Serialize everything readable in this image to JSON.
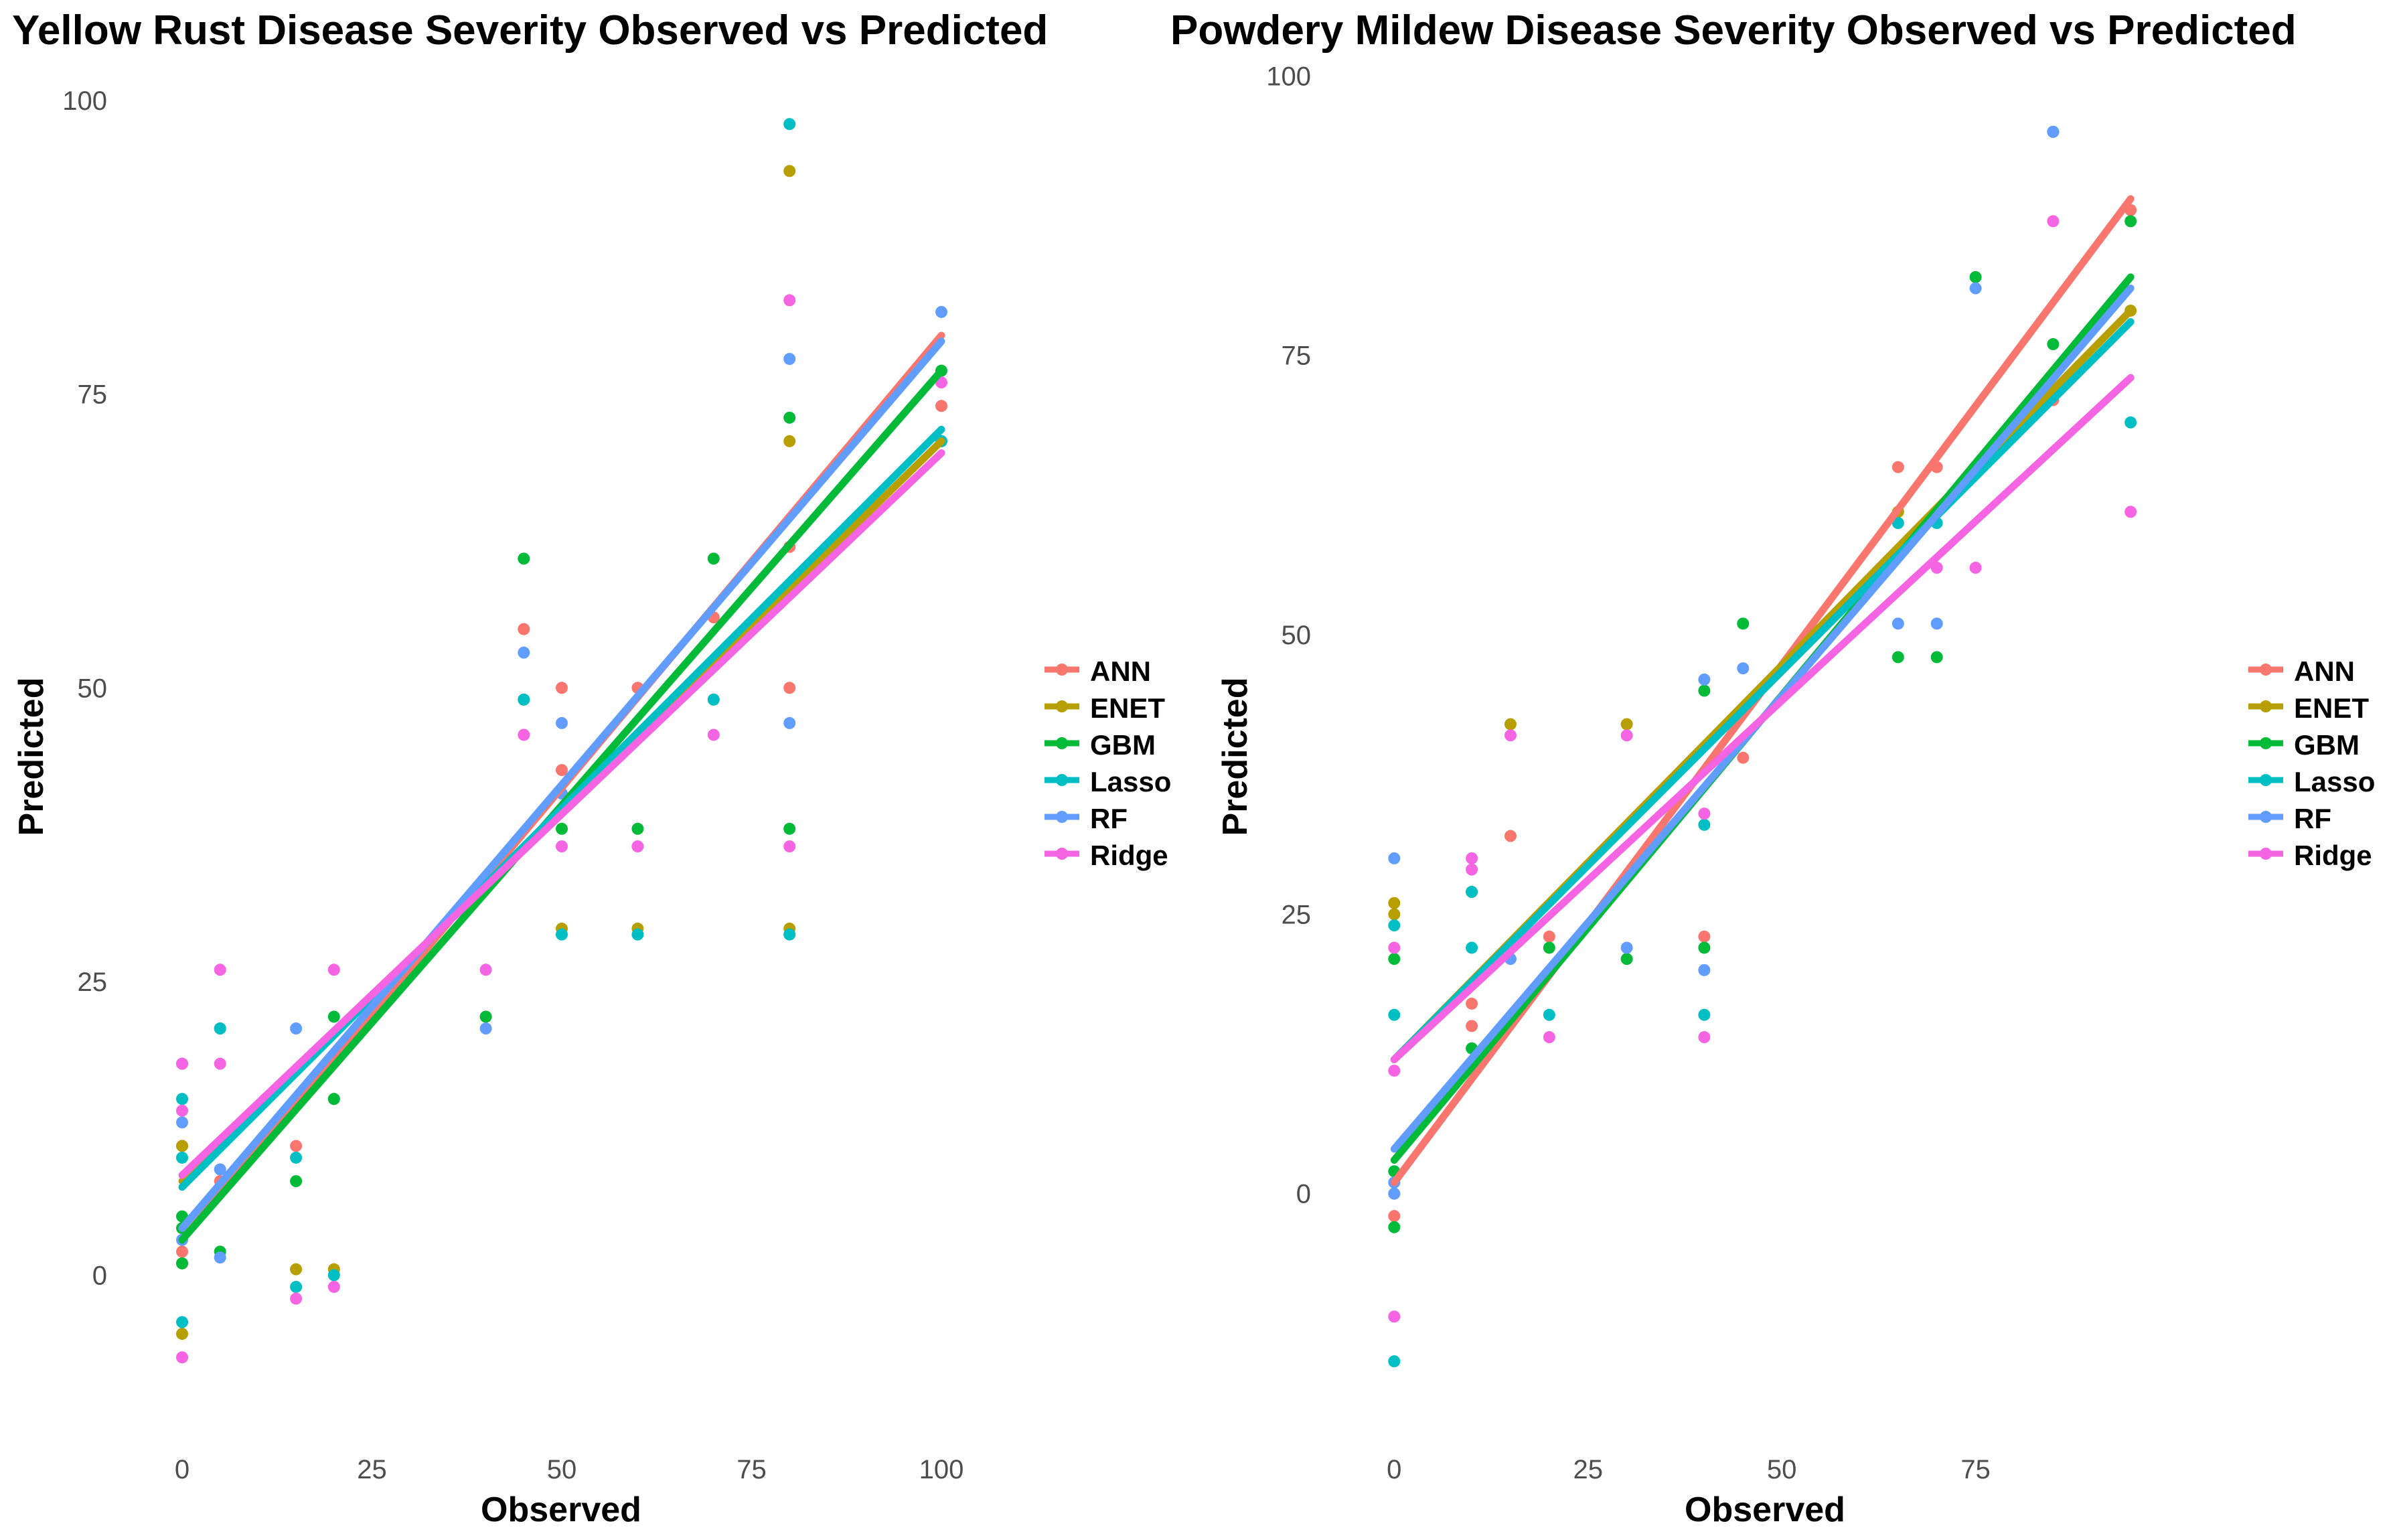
{
  "series_colors": {
    "ANN": "#F8766D",
    "ENET": "#B79F00",
    "GBM": "#00BA38",
    "Lasso": "#00BFC4",
    "RF": "#619CFF",
    "Ridge": "#F564E3"
  },
  "chart_data": [
    {
      "type": "scatter",
      "title": "Yellow Rust Disease Severity Observed vs Predicted",
      "xlabel": "Observed",
      "ylabel": "Predicted",
      "xlim": [
        -3,
        103
      ],
      "ylim": [
        -14,
        104
      ],
      "xticks": [
        0,
        25,
        50,
        75,
        100
      ],
      "yticks": [
        0,
        25,
        50,
        75,
        100
      ],
      "legend": [
        "ANN",
        "ENET",
        "GBM",
        "Lasso",
        "RF",
        "Ridge"
      ],
      "fit_lines": [
        {
          "name": "ANN",
          "x": [
            0,
            100
          ],
          "y": [
            3,
            80
          ]
        },
        {
          "name": "ENET",
          "x": [
            0,
            100
          ],
          "y": [
            8,
            71
          ]
        },
        {
          "name": "GBM",
          "x": [
            0,
            100
          ],
          "y": [
            3,
            77
          ]
        },
        {
          "name": "Lasso",
          "x": [
            0,
            100
          ],
          "y": [
            7.5,
            72
          ]
        },
        {
          "name": "RF",
          "x": [
            0,
            100
          ],
          "y": [
            4,
            79.5
          ]
        },
        {
          "name": "Ridge",
          "x": [
            0,
            100
          ],
          "y": [
            8.5,
            70
          ]
        }
      ],
      "points": [
        {
          "name": "ANN",
          "x": [
            0,
            0,
            5,
            15,
            20,
            40,
            45,
            50,
            50,
            60,
            70,
            80,
            80,
            100
          ],
          "y": [
            11,
            2,
            8,
            11,
            15,
            22,
            55,
            50,
            43,
            50,
            56,
            50,
            62,
            74
          ]
        },
        {
          "name": "ENET",
          "x": [
            0,
            0,
            0,
            5,
            15,
            20,
            45,
            50,
            60,
            70,
            80,
            80,
            80,
            100
          ],
          "y": [
            11,
            -5,
            1,
            21,
            0.5,
            0.5,
            49,
            29.5,
            29.5,
            49,
            94,
            71,
            29.5,
            71
          ]
        },
        {
          "name": "GBM",
          "x": [
            0,
            0,
            0,
            5,
            15,
            20,
            20,
            40,
            45,
            50,
            60,
            70,
            80,
            80,
            100
          ],
          "y": [
            4,
            1,
            5,
            2,
            8,
            15,
            22,
            22,
            61,
            38,
            38,
            61,
            73,
            38,
            77
          ]
        },
        {
          "name": "Lasso",
          "x": [
            0,
            0,
            0,
            5,
            15,
            15,
            20,
            45,
            50,
            60,
            70,
            80,
            80,
            100
          ],
          "y": [
            15,
            10,
            -4,
            21,
            10,
            -1,
            0,
            49,
            29,
            29,
            49,
            98,
            29,
            71
          ]
        },
        {
          "name": "RF",
          "x": [
            0,
            0,
            0,
            5,
            5,
            15,
            40,
            45,
            50,
            50,
            80,
            80,
            100
          ],
          "y": [
            18,
            13,
            3,
            9,
            1.5,
            21,
            21,
            53,
            47,
            41,
            78,
            47,
            82
          ]
        },
        {
          "name": "Ridge",
          "x": [
            0,
            0,
            0,
            5,
            5,
            15,
            20,
            20,
            40,
            45,
            50,
            60,
            70,
            80,
            80,
            100
          ],
          "y": [
            18,
            14,
            -7,
            26,
            18,
            -2,
            26,
            -1,
            26,
            46,
            36.5,
            36.5,
            46,
            83,
            36.5,
            76
          ]
        }
      ]
    },
    {
      "type": "scatter",
      "title": "Powdery Mildew Disease Severity Observed vs Predicted",
      "xlabel": "Observed",
      "ylabel": "Predicted",
      "xlim": [
        -4,
        100
      ],
      "ylim": [
        -22,
        102
      ],
      "xticks": [
        0,
        25,
        50,
        75
      ],
      "yticks": [
        0,
        25,
        50,
        75,
        100
      ],
      "legend": [
        "ANN",
        "ENET",
        "GBM",
        "Lasso",
        "RF",
        "Ridge"
      ],
      "fit_lines": [
        {
          "name": "ANN",
          "x": [
            0,
            95
          ],
          "y": [
            1,
            89
          ]
        },
        {
          "name": "ENET",
          "x": [
            0,
            95
          ],
          "y": [
            12,
            79
          ]
        },
        {
          "name": "GBM",
          "x": [
            0,
            95
          ],
          "y": [
            3,
            82
          ]
        },
        {
          "name": "Lasso",
          "x": [
            0,
            95
          ],
          "y": [
            12,
            78
          ]
        },
        {
          "name": "RF",
          "x": [
            0,
            95
          ],
          "y": [
            4,
            81
          ]
        },
        {
          "name": "Ridge",
          "x": [
            0,
            95
          ],
          "y": [
            12,
            73
          ]
        }
      ],
      "points": [
        {
          "name": "ANN",
          "x": [
            0,
            0,
            10,
            10,
            15,
            20,
            40,
            45,
            65,
            70,
            85,
            95
          ],
          "y": [
            -2,
            0,
            15,
            17,
            32,
            23,
            23,
            39,
            65,
            65,
            71,
            88
          ]
        },
        {
          "name": "ENET",
          "x": [
            0,
            0,
            10,
            15,
            30,
            65,
            85,
            95
          ],
          "y": [
            26,
            25,
            27,
            42,
            42,
            61,
            95,
            79
          ]
        },
        {
          "name": "GBM",
          "x": [
            0,
            0,
            0,
            10,
            20,
            30,
            40,
            40,
            45,
            65,
            70,
            75,
            85,
            95
          ],
          "y": [
            21,
            2,
            -3,
            13,
            22,
            21,
            22,
            45,
            51,
            48,
            48,
            82,
            76,
            87
          ]
        },
        {
          "name": "Lasso",
          "x": [
            0,
            0,
            0,
            10,
            10,
            20,
            40,
            40,
            65,
            70,
            85,
            95
          ],
          "y": [
            24,
            16,
            -15,
            22,
            27,
            16,
            16,
            33,
            60,
            60,
            95,
            69
          ]
        },
        {
          "name": "RF",
          "x": [
            0,
            0,
            0,
            15,
            30,
            40,
            40,
            45,
            65,
            70,
            75,
            85
          ],
          "y": [
            30,
            0,
            1,
            21,
            22,
            20,
            46,
            47,
            51,
            51,
            81,
            95
          ]
        },
        {
          "name": "Ridge",
          "x": [
            0,
            0,
            0,
            10,
            10,
            15,
            20,
            30,
            40,
            40,
            70,
            75,
            85,
            95
          ],
          "y": [
            22,
            11,
            -11,
            30,
            29,
            41,
            14,
            41,
            14,
            34,
            56,
            56,
            87,
            61
          ]
        }
      ]
    }
  ]
}
